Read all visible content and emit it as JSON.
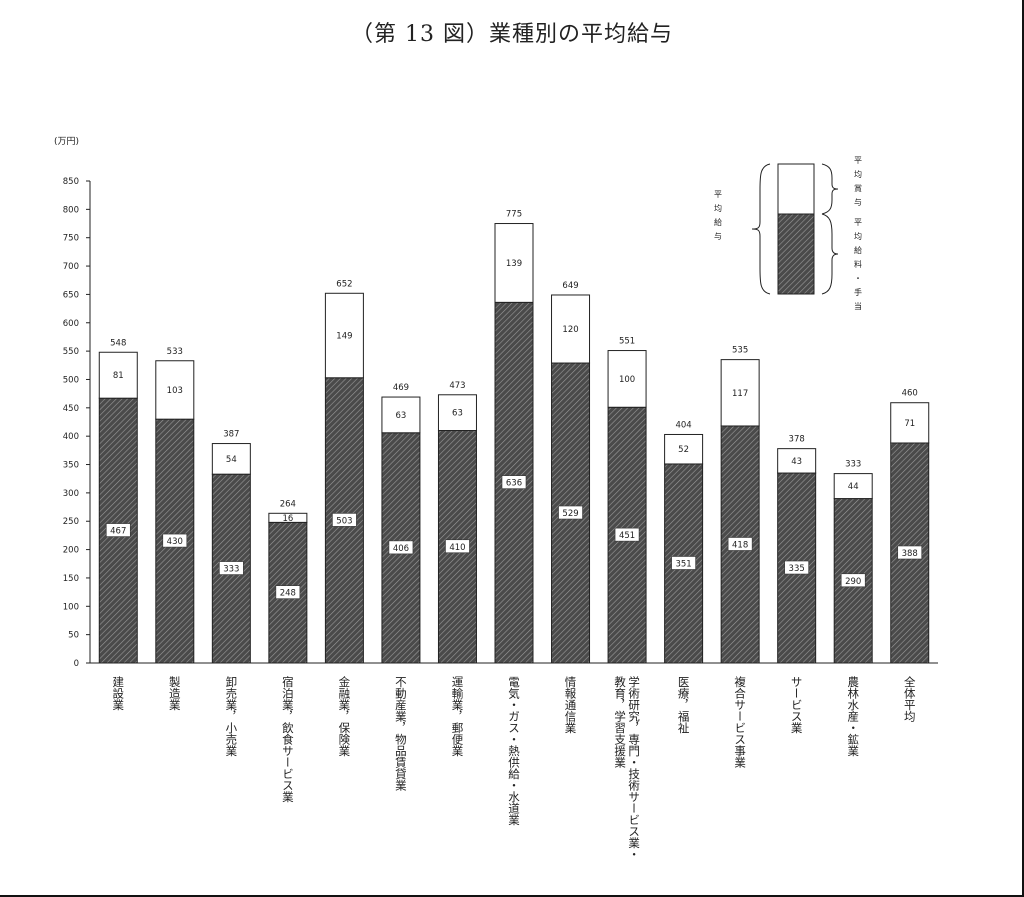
{
  "chart_data": {
    "type": "bar",
    "stacked": true,
    "title": "（第 13 図）業種別の平均給与",
    "unit": "(万円)",
    "ylim": [
      0,
      850
    ],
    "yticks": [
      0,
      50,
      100,
      150,
      200,
      250,
      300,
      350,
      400,
      450,
      500,
      550,
      600,
      650,
      700,
      750,
      800,
      850
    ],
    "grid": false,
    "categories": [
      "建設業",
      "製造業",
      "卸売業，小売業",
      "宿泊業，飲食サービス業",
      "金融業，保険業",
      "不動産業，物品賃貸業",
      "運輸業，郵便業",
      "電気・ガス・熱供給・水道業",
      "情報通信業",
      "学術研究，専門・技術サービス業，教育，学習支援業",
      "医療，福祉",
      "複合サービス事業",
      "サービス業",
      "農林水産・鉱業",
      "全体平均"
    ],
    "category_lines": [
      [
        "建設業"
      ],
      [
        "製造業"
      ],
      [
        "卸売業，小売業"
      ],
      [
        "宿泊業，飲食サービス業"
      ],
      [
        "金融業，保険業"
      ],
      [
        "不動産業，物品賃貸業"
      ],
      [
        "運輸業，郵便業"
      ],
      [
        "電気・ガス・熱供給・水道業"
      ],
      [
        "情報通信業"
      ],
      [
        "学術研究，専門・技術サービス業・",
        "教育，学習支援業"
      ],
      [
        "医療，福祉"
      ],
      [
        "複合サービス事業"
      ],
      [
        "サービス業"
      ],
      [
        "農林水産・鉱業"
      ],
      [
        "全体平均"
      ]
    ],
    "series": [
      {
        "name": "平均給料・手当",
        "values": [
          467,
          430,
          333,
          248,
          503,
          406,
          410,
          636,
          529,
          451,
          351,
          418,
          335,
          290,
          388
        ]
      },
      {
        "name": "平均賞与",
        "values": [
          81,
          103,
          54,
          16,
          149,
          63,
          63,
          139,
          120,
          100,
          52,
          117,
          43,
          44,
          71
        ]
      }
    ],
    "totals": [
      548,
      533,
      387,
      264,
      652,
      469,
      473,
      775,
      649,
      551,
      404,
      535,
      378,
      333,
      460
    ],
    "legend": {
      "placement": "top-right",
      "total_label": "平均給与",
      "bonus_label": "平均賞与",
      "salary_label": "平均給料・手当"
    },
    "colors": {
      "salary_fill": "#4a4a4a",
      "hatch_line": "#9a9a9a",
      "bonus_fill": "#ffffff",
      "stroke": "#222222"
    }
  }
}
